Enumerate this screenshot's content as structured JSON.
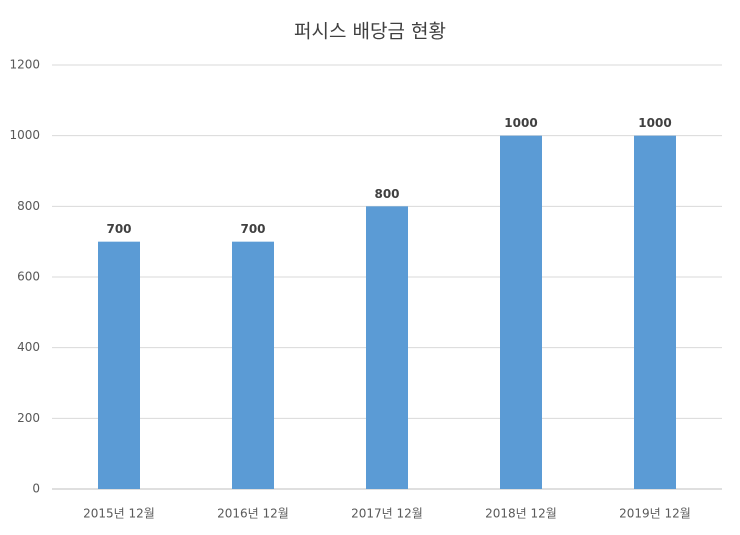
{
  "chart_data": {
    "type": "bar",
    "title": "퍼시스 배당금 현황",
    "categories": [
      "2015년 12월",
      "2016년 12월",
      "2017년 12월",
      "2018년 12월",
      "2019년 12월"
    ],
    "values": [
      700,
      700,
      800,
      1000,
      1000
    ],
    "color": "#5b9bd5",
    "ylim": [
      0,
      1200
    ],
    "yticks": [
      0,
      200,
      400,
      600,
      800,
      1000,
      1200
    ],
    "grid": true
  }
}
